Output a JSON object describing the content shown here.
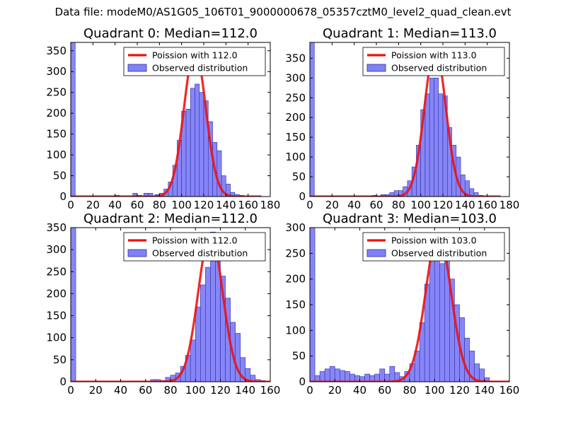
{
  "figure": {
    "suptitle": "Data file: modeM0/AS1G05_106T01_9000000678_05357cztM0_level2_quad_clean.evt"
  },
  "colors": {
    "bar": "#8080f8",
    "bar_edge": "#3030a0",
    "curve": "#ee1111"
  },
  "chart_data": [
    {
      "type": "bar",
      "title": "Quadrant 0: Median=112.0",
      "xlim": [
        0,
        180
      ],
      "ylim": [
        0,
        370
      ],
      "xticks": [
        0,
        20,
        40,
        60,
        80,
        100,
        120,
        140,
        160,
        180
      ],
      "yticks": [
        0,
        50,
        100,
        150,
        200,
        250,
        300,
        350
      ],
      "bin_width": 4,
      "bins": [
        [
          0,
          370
        ],
        [
          40,
          3
        ],
        [
          56,
          8
        ],
        [
          60,
          3
        ],
        [
          66,
          8
        ],
        [
          70,
          8
        ],
        [
          76,
          5
        ],
        [
          80,
          8
        ],
        [
          84,
          18
        ],
        [
          88,
          35
        ],
        [
          92,
          75
        ],
        [
          96,
          135
        ],
        [
          100,
          205
        ],
        [
          104,
          210
        ],
        [
          108,
          260
        ],
        [
          112,
          270
        ],
        [
          116,
          250
        ],
        [
          120,
          230
        ],
        [
          124,
          180
        ],
        [
          128,
          130
        ],
        [
          132,
          110
        ],
        [
          136,
          50
        ],
        [
          140,
          30
        ],
        [
          144,
          10
        ],
        [
          148,
          5
        ],
        [
          152,
          3
        ]
      ],
      "curve": {
        "label": "Poission with 112.0",
        "mu": 112.0,
        "peak": 352,
        "sigma": 9.8,
        "x_range": [
          0,
          172
        ]
      },
      "legend": {
        "curve": "Poission with 112.0",
        "bars": "Observed distribution",
        "loc": "upper right"
      }
    },
    {
      "type": "bar",
      "title": "Quadrant 1: Median=113.0",
      "xlim": [
        0,
        180
      ],
      "ylim": [
        0,
        390
      ],
      "xticks": [
        0,
        20,
        40,
        60,
        80,
        100,
        120,
        140,
        160,
        180
      ],
      "yticks": [
        0,
        50,
        100,
        150,
        200,
        250,
        300,
        350
      ],
      "bin_width": 4,
      "bins": [
        [
          0,
          390
        ],
        [
          56,
          3
        ],
        [
          64,
          5
        ],
        [
          68,
          5
        ],
        [
          72,
          10
        ],
        [
          76,
          15
        ],
        [
          80,
          15
        ],
        [
          84,
          25
        ],
        [
          88,
          40
        ],
        [
          92,
          75
        ],
        [
          96,
          130
        ],
        [
          100,
          220
        ],
        [
          104,
          260
        ],
        [
          108,
          300
        ],
        [
          112,
          300
        ],
        [
          116,
          260
        ],
        [
          120,
          255
        ],
        [
          124,
          175
        ],
        [
          128,
          130
        ],
        [
          132,
          100
        ],
        [
          136,
          55
        ],
        [
          140,
          40
        ],
        [
          144,
          20
        ],
        [
          148,
          10
        ],
        [
          152,
          3
        ]
      ],
      "curve": {
        "label": "Poission with 113.0",
        "mu": 113.0,
        "peak": 375,
        "sigma": 9.6,
        "x_range": [
          0,
          172
        ]
      },
      "legend": {
        "curve": "Poission with 113.0",
        "bars": "Observed distribution",
        "loc": "upper right"
      }
    },
    {
      "type": "bar",
      "title": "Quadrant 2: Median=112.0",
      "xlim": [
        0,
        160
      ],
      "ylim": [
        0,
        350
      ],
      "xticks": [
        0,
        20,
        40,
        60,
        80,
        100,
        120,
        140,
        160
      ],
      "yticks": [
        0,
        50,
        100,
        150,
        200,
        250,
        300,
        350
      ],
      "bin_width": 4,
      "bins": [
        [
          0,
          350
        ],
        [
          64,
          5
        ],
        [
          68,
          5
        ],
        [
          72,
          3
        ],
        [
          76,
          10
        ],
        [
          80,
          15
        ],
        [
          84,
          20
        ],
        [
          88,
          35
        ],
        [
          92,
          60
        ],
        [
          96,
          95
        ],
        [
          100,
          170
        ],
        [
          104,
          220
        ],
        [
          108,
          260
        ],
        [
          112,
          340
        ],
        [
          116,
          280
        ],
        [
          120,
          240
        ],
        [
          124,
          190
        ],
        [
          128,
          135
        ],
        [
          132,
          110
        ],
        [
          136,
          55
        ],
        [
          140,
          30
        ],
        [
          144,
          15
        ],
        [
          148,
          5
        ],
        [
          152,
          3
        ]
      ],
      "curve": {
        "label": "Poission with 112.0",
        "mu": 112.0,
        "peak": 335,
        "sigma": 9.8,
        "x_range": [
          0,
          160
        ]
      },
      "legend": {
        "curve": "Poission with 112.0",
        "bars": "Observed distribution",
        "loc": "upper right"
      }
    },
    {
      "type": "bar",
      "title": "Quadrant 3: Median=103.0",
      "xlim": [
        0,
        160
      ],
      "ylim": [
        0,
        300
      ],
      "xticks": [
        0,
        20,
        40,
        60,
        80,
        100,
        120,
        140,
        160
      ],
      "yticks": [
        0,
        50,
        100,
        150,
        200,
        250,
        300
      ],
      "bin_width": 4,
      "bins": [
        [
          0,
          300
        ],
        [
          4,
          12
        ],
        [
          8,
          20
        ],
        [
          12,
          25
        ],
        [
          16,
          30
        ],
        [
          20,
          25
        ],
        [
          24,
          22
        ],
        [
          28,
          20
        ],
        [
          32,
          15
        ],
        [
          36,
          12
        ],
        [
          40,
          10
        ],
        [
          44,
          15
        ],
        [
          48,
          12
        ],
        [
          52,
          15
        ],
        [
          56,
          25
        ],
        [
          60,
          15
        ],
        [
          64,
          30
        ],
        [
          68,
          18
        ],
        [
          72,
          10
        ],
        [
          76,
          20
        ],
        [
          80,
          35
        ],
        [
          84,
          60
        ],
        [
          88,
          115
        ],
        [
          92,
          190
        ],
        [
          96,
          265
        ],
        [
          100,
          250
        ],
        [
          104,
          230
        ],
        [
          108,
          250
        ],
        [
          112,
          200
        ],
        [
          116,
          150
        ],
        [
          120,
          125
        ],
        [
          124,
          85
        ],
        [
          128,
          60
        ],
        [
          132,
          35
        ],
        [
          136,
          25
        ],
        [
          140,
          8
        ]
      ],
      "curve": {
        "label": "Poission with 103.0",
        "mu": 103.0,
        "peak": 288,
        "sigma": 10.2,
        "x_range": [
          0,
          160
        ]
      },
      "legend": {
        "curve": "Poission with 103.0",
        "bars": "Observed distribution",
        "loc": "upper right"
      }
    }
  ]
}
